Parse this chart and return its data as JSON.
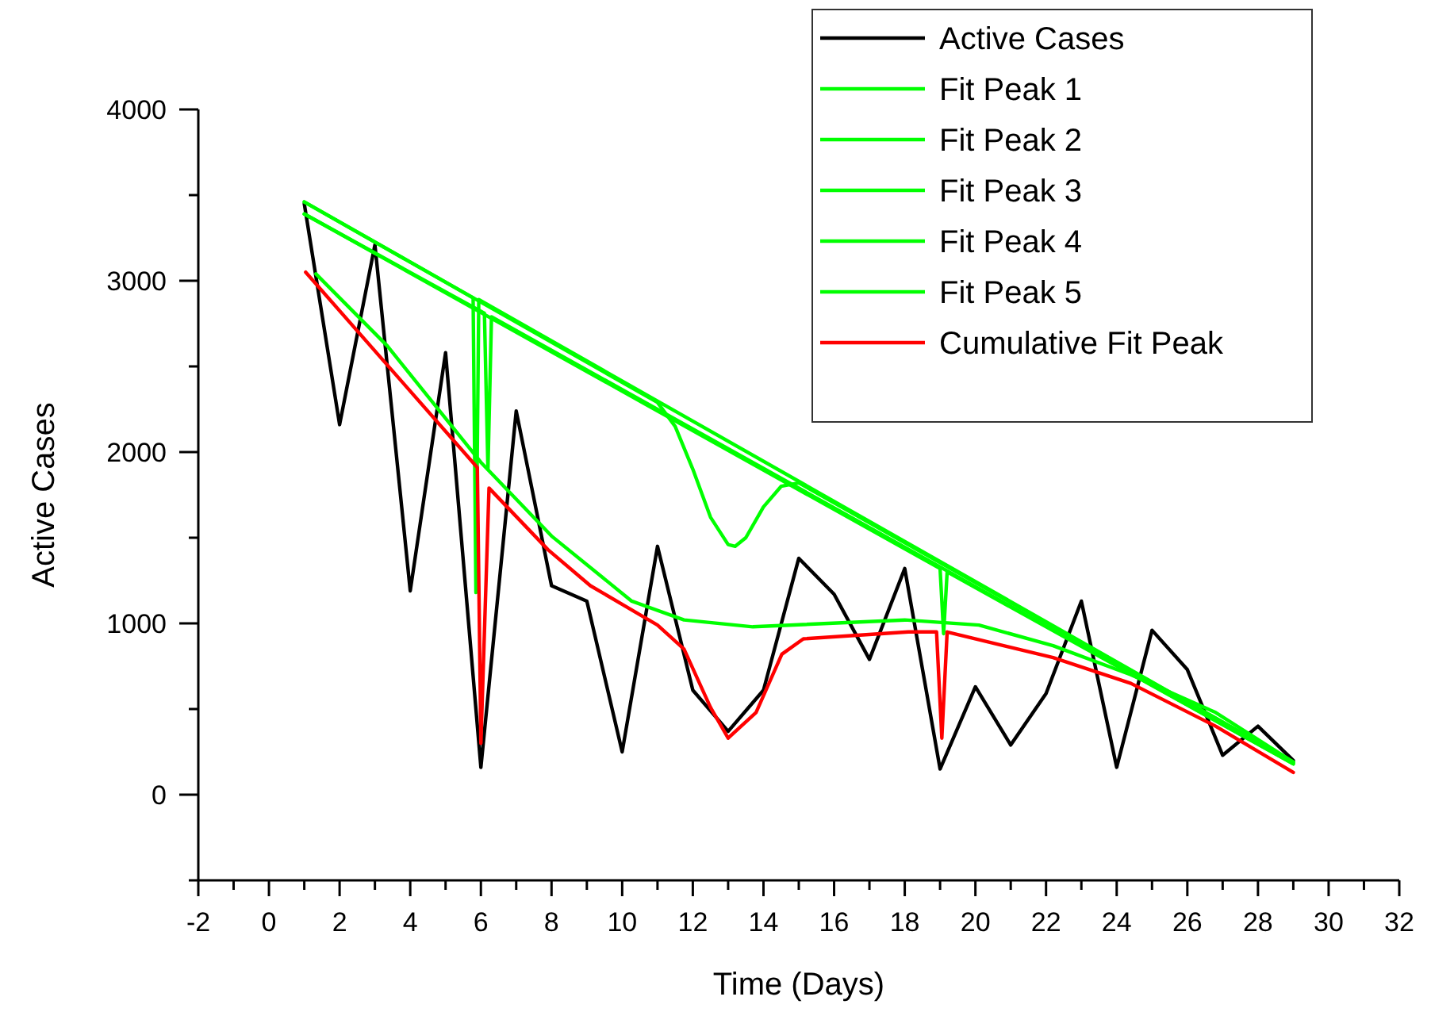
{
  "chart_data": {
    "type": "line",
    "xlabel": "Time (Days)",
    "ylabel": "Active Cases",
    "xlim": [
      -2,
      32
    ],
    "ylim": [
      -500,
      4000
    ],
    "xticks": [
      -2,
      {
        "value": -1,
        "label": null
      },
      0,
      {
        "value": 1,
        "label": null
      },
      2,
      {
        "value": 3,
        "label": null
      },
      4,
      {
        "value": 5,
        "label": null
      },
      6,
      {
        "value": 7,
        "label": null
      },
      8,
      {
        "value": 9,
        "label": null
      },
      10,
      {
        "value": 11,
        "label": null
      },
      12,
      {
        "value": 13,
        "label": null
      },
      14,
      {
        "value": 15,
        "label": null
      },
      16,
      {
        "value": 17,
        "label": null
      },
      18,
      {
        "value": 19,
        "label": null
      },
      20,
      {
        "value": 21,
        "label": null
      },
      22,
      {
        "value": 23,
        "label": null
      },
      24,
      {
        "value": 25,
        "label": null
      },
      26,
      {
        "value": 27,
        "label": null
      },
      28,
      {
        "value": 29,
        "label": null
      },
      30,
      {
        "value": 31,
        "label": null
      },
      32
    ],
    "yticks": [
      {
        "value": -500,
        "label": null
      },
      0,
      {
        "value": 500,
        "label": null
      },
      1000,
      {
        "value": 1500,
        "label": null
      },
      2000,
      {
        "value": 2500,
        "label": null
      },
      3000,
      {
        "value": 3500,
        "label": null
      },
      4000
    ],
    "grid": false,
    "legend": "top right",
    "marker": "none",
    "line_style": "solid",
    "series": [
      {
        "name": "Active Cases",
        "color": "#000000",
        "x": [
          1,
          2,
          3,
          4,
          5,
          6,
          7,
          8,
          9,
          10,
          11,
          12,
          13,
          14,
          15,
          16,
          17,
          18,
          19,
          20,
          21,
          22,
          23,
          24,
          25,
          26,
          27,
          28,
          29
        ],
        "values": [
          3450,
          2160,
          3210,
          1190,
          2580,
          160,
          2240,
          1220,
          1130,
          250,
          1450,
          610,
          370,
          610,
          1380,
          1170,
          790,
          1320,
          150,
          630,
          290,
          590,
          1130,
          160,
          960,
          730,
          230,
          400,
          200
        ]
      },
      {
        "name": "Fit Peak 1",
        "color": "#00ff00",
        "x": [
          1,
          5.78,
          5.86,
          5.94,
          29
        ],
        "values": [
          3460,
          2900,
          1180,
          2890,
          190
        ]
      },
      {
        "name": "Fit Peak 2",
        "color": "#00ff00",
        "x": [
          1,
          6.1,
          6.2,
          6.3,
          29
        ],
        "values": [
          3390,
          2810,
          1900,
          2790,
          180
        ]
      },
      {
        "name": "Fit Peak 3",
        "color": "#00ff00",
        "x": [
          1,
          11,
          11.5,
          12,
          12.5,
          13,
          13.2,
          13.5,
          14,
          14.5,
          15,
          29
        ],
        "values": [
          3460,
          2290,
          2150,
          1900,
          1620,
          1460,
          1450,
          1500,
          1680,
          1800,
          1820,
          190
        ]
      },
      {
        "name": "Fit Peak 4",
        "color": "#00ff00",
        "x": [
          1,
          19,
          19.1,
          19.2,
          29
        ],
        "values": [
          3390,
          1320,
          940,
          1300,
          180
        ]
      },
      {
        "name": "Fit Peak 5",
        "color": "#00ff00",
        "x": [
          1.33,
          3.35,
          6,
          8,
          10.27,
          11.75,
          13.7,
          18,
          20.1,
          22.2,
          24.4,
          26.8,
          29
        ],
        "values": [
          3040,
          2620,
          1940,
          1510,
          1130,
          1020,
          980,
          1020,
          990,
          870,
          700,
          480,
          190
        ]
      },
      {
        "name": "Cumulative Fit Peak",
        "color": "#ff0000",
        "x": [
          1.04,
          5.9,
          6,
          6.23,
          7.9,
          9.1,
          11,
          11.75,
          12.5,
          13,
          13.79,
          14.52,
          15.13,
          18.1,
          18.9,
          19.05,
          19.2,
          22.2,
          24.4,
          26.8,
          29
        ],
        "values": [
          3050,
          1910,
          300,
          1790,
          1430,
          1220,
          990,
          850,
          510,
          330,
          480,
          820,
          910,
          950,
          950,
          330,
          950,
          800,
          650,
          400,
          130
        ]
      }
    ]
  }
}
